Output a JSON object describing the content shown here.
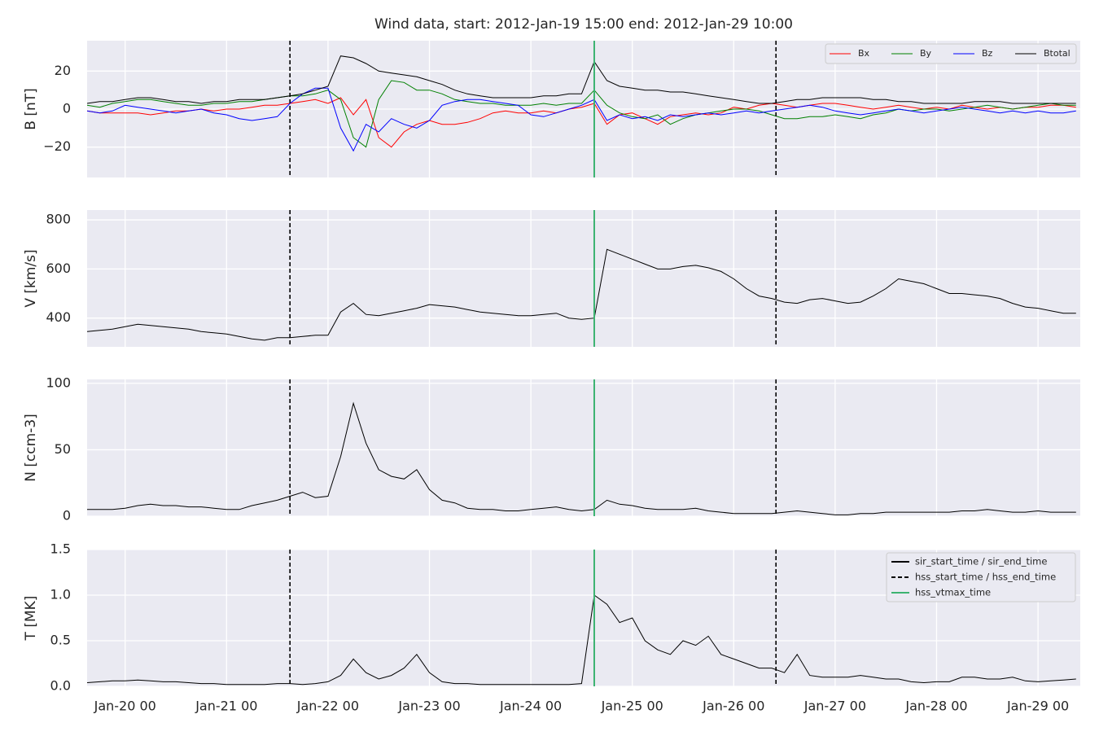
{
  "chart_data": {
    "type": "line",
    "title": "Wind data, start: 2012-Jan-19 15:00  end: 2012-Jan-29 10:00",
    "x": [
      "Jan-19 15",
      "Jan-19 18",
      "Jan-19 21",
      "Jan-20 00",
      "Jan-20 03",
      "Jan-20 06",
      "Jan-20 09",
      "Jan-20 12",
      "Jan-20 15",
      "Jan-20 18",
      "Jan-20 21",
      "Jan-21 00",
      "Jan-21 03",
      "Jan-21 06",
      "Jan-21 09",
      "Jan-21 12",
      "Jan-21 15",
      "Jan-21 18",
      "Jan-21 21",
      "Jan-22 00",
      "Jan-22 03",
      "Jan-22 06",
      "Jan-22 09",
      "Jan-22 12",
      "Jan-22 15",
      "Jan-22 18",
      "Jan-22 21",
      "Jan-23 00",
      "Jan-23 03",
      "Jan-23 06",
      "Jan-23 09",
      "Jan-23 12",
      "Jan-23 15",
      "Jan-23 18",
      "Jan-23 21",
      "Jan-24 00",
      "Jan-24 03",
      "Jan-24 06",
      "Jan-24 09",
      "Jan-24 12",
      "Jan-24 15",
      "Jan-24 18",
      "Jan-24 21",
      "Jan-25 00",
      "Jan-25 03",
      "Jan-25 06",
      "Jan-25 09",
      "Jan-25 12",
      "Jan-25 15",
      "Jan-25 18",
      "Jan-25 21",
      "Jan-26 00",
      "Jan-26 03",
      "Jan-26 06",
      "Jan-26 09",
      "Jan-26 12",
      "Jan-26 15",
      "Jan-26 18",
      "Jan-26 21",
      "Jan-27 00",
      "Jan-27 03",
      "Jan-27 06",
      "Jan-27 09",
      "Jan-27 12",
      "Jan-27 15",
      "Jan-27 18",
      "Jan-27 21",
      "Jan-28 00",
      "Jan-28 03",
      "Jan-28 06",
      "Jan-28 09",
      "Jan-28 12",
      "Jan-28 15",
      "Jan-28 18",
      "Jan-28 21",
      "Jan-29 00",
      "Jan-29 03",
      "Jan-29 06",
      "Jan-29 09"
    ],
    "xlim": [
      "Jan-19 15",
      "Jan-29 10"
    ],
    "xticks": [
      "Jan-20 00",
      "Jan-21 00",
      "Jan-22 00",
      "Jan-23 00",
      "Jan-24 00",
      "Jan-25 00",
      "Jan-26 00",
      "Jan-27 00",
      "Jan-28 00",
      "Jan-29 00"
    ],
    "grid": true,
    "vlines": [
      {
        "name": "sir_start_time / sir_end_time",
        "style": "solid",
        "color": "#000000",
        "x": []
      },
      {
        "name": "hss_start_time / hss_end_time",
        "style": "dashed",
        "color": "#000000",
        "x": [
          "Jan-21 15",
          "Jan-26 10"
        ]
      },
      {
        "name": "hss_vtmax_time",
        "style": "solid",
        "color": "#3cb371",
        "x": [
          "Jan-24 15"
        ]
      }
    ],
    "panels": [
      {
        "ylabel": "B [nT]",
        "ylim": [
          -36,
          36
        ],
        "yticks": [
          {
            "value": -20,
            "label": "−20"
          },
          0,
          20
        ],
        "legend": "upper right",
        "series": [
          {
            "name": "Bx",
            "color": "#ff0000",
            "values": [
              -1,
              -2,
              -2,
              -2,
              -2,
              -3,
              -2,
              -1,
              -1,
              0,
              -1,
              0,
              0,
              1,
              2,
              2,
              3,
              4,
              5,
              3,
              6,
              -3,
              5,
              -15,
              -20,
              -12,
              -8,
              -6,
              -8,
              -8,
              -7,
              -5,
              -2,
              -1,
              -2,
              -2,
              -1,
              -2,
              0,
              1,
              3,
              -8,
              -3,
              -2,
              -5,
              -8,
              -4,
              -3,
              -2,
              -3,
              -2,
              1,
              0,
              2,
              3,
              2,
              1,
              2,
              3,
              3,
              2,
              1,
              0,
              1,
              2,
              1,
              0,
              1,
              0,
              2,
              1,
              0,
              1,
              0,
              1,
              1,
              2,
              2,
              1
            ]
          },
          {
            "name": "By",
            "color": "#008000",
            "values": [
              2,
              1,
              3,
              4,
              5,
              5,
              4,
              3,
              2,
              2,
              3,
              3,
              4,
              4,
              5,
              6,
              7,
              7,
              8,
              10,
              5,
              -15,
              -20,
              5,
              15,
              14,
              10,
              10,
              8,
              5,
              4,
              3,
              3,
              2,
              2,
              2,
              3,
              2,
              3,
              3,
              10,
              2,
              -2,
              -4,
              -5,
              -3,
              -8,
              -5,
              -3,
              -2,
              -1,
              0,
              0,
              -1,
              -3,
              -5,
              -5,
              -4,
              -4,
              -3,
              -4,
              -5,
              -3,
              -2,
              0,
              -1,
              0,
              0,
              -1,
              0,
              1,
              2,
              1,
              0,
              1,
              2,
              3,
              2,
              2
            ]
          },
          {
            "name": "Bz",
            "color": "#0000ff",
            "values": [
              -1,
              -2,
              -1,
              2,
              1,
              0,
              -1,
              -2,
              -1,
              0,
              -2,
              -3,
              -5,
              -6,
              -5,
              -4,
              3,
              8,
              11,
              11,
              -10,
              -22,
              -8,
              -12,
              -5,
              -8,
              -10,
              -6,
              2,
              4,
              5,
              5,
              4,
              3,
              2,
              -3,
              -4,
              -2,
              0,
              2,
              5,
              -6,
              -3,
              -5,
              -4,
              -6,
              -3,
              -4,
              -3,
              -2,
              -3,
              -2,
              -1,
              -2,
              -1,
              0,
              1,
              2,
              1,
              -1,
              -2,
              -3,
              -2,
              -1,
              0,
              -1,
              -2,
              -1,
              0,
              1,
              0,
              -1,
              -2,
              -1,
              -2,
              -1,
              -2,
              -2,
              -1
            ]
          },
          {
            "name": "Btotal",
            "color": "#000000",
            "values": [
              3,
              4,
              4,
              5,
              6,
              6,
              5,
              4,
              4,
              3,
              4,
              4,
              5,
              5,
              5,
              6,
              7,
              8,
              10,
              12,
              28,
              27,
              24,
              20,
              19,
              18,
              17,
              15,
              13,
              10,
              8,
              7,
              6,
              6,
              6,
              6,
              7,
              7,
              8,
              8,
              25,
              15,
              12,
              11,
              10,
              10,
              9,
              9,
              8,
              7,
              6,
              5,
              4,
              3,
              3,
              4,
              5,
              5,
              6,
              6,
              6,
              6,
              5,
              5,
              4,
              4,
              3,
              3,
              3,
              3,
              4,
              4,
              4,
              3,
              3,
              3,
              3,
              3,
              3
            ]
          }
        ]
      },
      {
        "ylabel": "V [km/s]",
        "ylim": [
          283,
          840
        ],
        "yticks": [
          400,
          600,
          800
        ],
        "series": [
          {
            "color": "#000000",
            "values": [
              345,
              350,
              355,
              365,
              375,
              370,
              365,
              360,
              355,
              345,
              340,
              335,
              325,
              315,
              310,
              320,
              320,
              325,
              330,
              330,
              425,
              460,
              415,
              410,
              420,
              430,
              440,
              455,
              450,
              445,
              435,
              425,
              420,
              415,
              410,
              410,
              415,
              420,
              400,
              395,
              400,
              680,
              660,
              640,
              620,
              600,
              600,
              610,
              615,
              605,
              590,
              560,
              520,
              490,
              480,
              465,
              460,
              475,
              480,
              470,
              460,
              465,
              490,
              520,
              560,
              550,
              540,
              520,
              500,
              500,
              495,
              490,
              480,
              460,
              445,
              440,
              430,
              420,
              420
            ]
          }
        ]
      },
      {
        "ylabel": "N [ccm-3]",
        "ylim": [
          0,
          103
        ],
        "yticks": [
          0,
          50,
          100
        ],
        "series": [
          {
            "color": "#000000",
            "values": [
              5,
              5,
              5,
              6,
              8,
              9,
              8,
              8,
              7,
              7,
              6,
              5,
              5,
              8,
              10,
              12,
              15,
              18,
              14,
              15,
              45,
              85,
              55,
              35,
              30,
              28,
              35,
              20,
              12,
              10,
              6,
              5,
              5,
              4,
              4,
              5,
              6,
              7,
              5,
              4,
              5,
              12,
              9,
              8,
              6,
              5,
              5,
              5,
              6,
              4,
              3,
              2,
              2,
              2,
              2,
              3,
              4,
              3,
              2,
              1,
              1,
              2,
              2,
              3,
              3,
              3,
              3,
              3,
              3,
              4,
              4,
              5,
              4,
              3,
              3,
              4,
              3,
              3,
              3
            ]
          }
        ]
      },
      {
        "ylabel": "T [MK]",
        "ylim": [
          0,
          1.5
        ],
        "yticks": [
          {
            "value": 0,
            "label": "0.0"
          },
          0.5,
          {
            "value": 1,
            "label": "1.0"
          },
          1.5
        ],
        "legend": "upper right",
        "series": [
          {
            "color": "#000000",
            "values": [
              0.04,
              0.05,
              0.06,
              0.06,
              0.07,
              0.06,
              0.05,
              0.05,
              0.04,
              0.03,
              0.03,
              0.02,
              0.02,
              0.02,
              0.02,
              0.03,
              0.03,
              0.02,
              0.03,
              0.05,
              0.12,
              0.3,
              0.15,
              0.08,
              0.12,
              0.2,
              0.35,
              0.15,
              0.05,
              0.03,
              0.03,
              0.02,
              0.02,
              0.02,
              0.02,
              0.02,
              0.02,
              0.02,
              0.02,
              0.03,
              1.0,
              0.9,
              0.7,
              0.75,
              0.5,
              0.4,
              0.35,
              0.5,
              0.45,
              0.55,
              0.35,
              0.3,
              0.25,
              0.2,
              0.2,
              0.15,
              0.35,
              0.12,
              0.1,
              0.1,
              0.1,
              0.12,
              0.1,
              0.08,
              0.08,
              0.05,
              0.04,
              0.05,
              0.05,
              0.1,
              0.1,
              0.08,
              0.08,
              0.1,
              0.06,
              0.05,
              0.06,
              0.07,
              0.08
            ]
          }
        ]
      }
    ]
  }
}
